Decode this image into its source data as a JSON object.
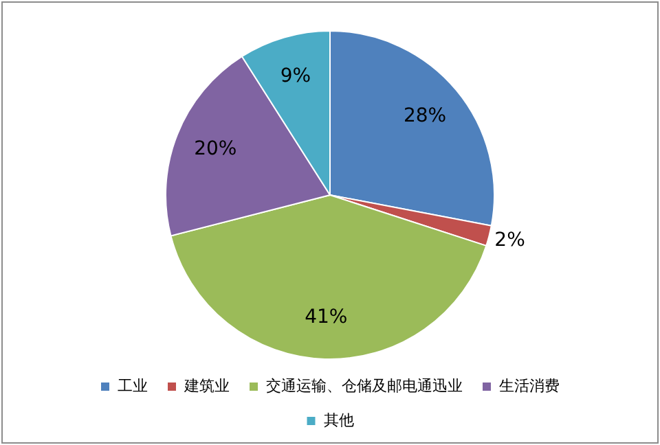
{
  "chart_data": {
    "type": "pie",
    "categories": [
      "工业",
      "建筑业",
      "交通运输、仓储及邮电通迅业",
      "生活消费",
      "其他"
    ],
    "values": [
      28,
      2,
      41,
      20,
      9
    ],
    "colors": [
      "#4f81bd",
      "#c0504d",
      "#9bbb59",
      "#8064a2",
      "#4bacc6"
    ],
    "value_labels": [
      "28%",
      "2%",
      "41%",
      "20%",
      "9%"
    ],
    "legend": "bottom"
  }
}
